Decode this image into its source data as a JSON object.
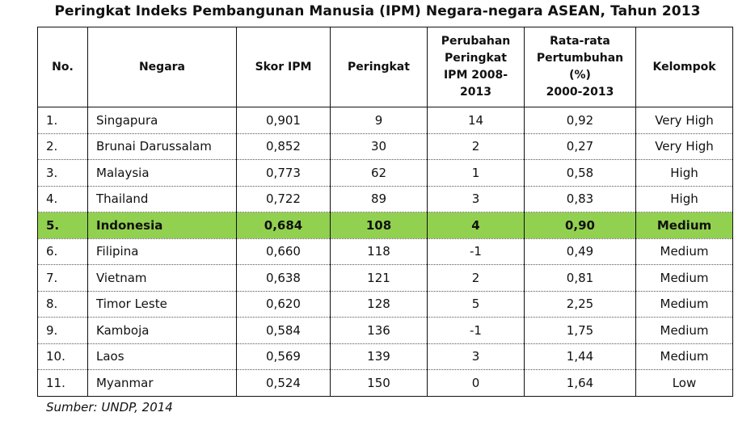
{
  "title": "Peringkat Indeks Pembangunan Manusia (IPM) Negara-negara ASEAN, Tahun 2013",
  "highlight_color": "#92d050",
  "table": {
    "headers": [
      "No.",
      "Negara",
      "Skor IPM",
      "Peringkat",
      "Perubahan\nPeringkat\nIPM 2008-\n2013",
      "Rata-rata\nPertumbuhan\n(%)\n2000-2013",
      "Kelompok"
    ],
    "rows": [
      {
        "no": "1.",
        "negara": "Singapura",
        "skor": "0,901",
        "peringkat": "9",
        "perubahan": "14",
        "pertumbuhan": "0,92",
        "kelompok": "Very High"
      },
      {
        "no": "2.",
        "negara": "Brunai Darussalam",
        "skor": "0,852",
        "peringkat": "30",
        "perubahan": "2",
        "pertumbuhan": "0,27",
        "kelompok": "Very High"
      },
      {
        "no": "3.",
        "negara": "Malaysia",
        "skor": "0,773",
        "peringkat": "62",
        "perubahan": "1",
        "pertumbuhan": "0,58",
        "kelompok": "High"
      },
      {
        "no": "4.",
        "negara": "Thailand",
        "skor": "0,722",
        "peringkat": "89",
        "perubahan": "3",
        "pertumbuhan": "0,83",
        "kelompok": "High"
      },
      {
        "no": "5.",
        "negara": "Indonesia",
        "skor": "0,684",
        "peringkat": "108",
        "perubahan": "4",
        "pertumbuhan": "0,90",
        "kelompok": "Medium",
        "highlighted": true
      },
      {
        "no": "6.",
        "negara": "Filipina",
        "skor": "0,660",
        "peringkat": "118",
        "perubahan": "-1",
        "pertumbuhan": "0,49",
        "kelompok": "Medium"
      },
      {
        "no": "7.",
        "negara": "Vietnam",
        "skor": "0,638",
        "peringkat": "121",
        "perubahan": "2",
        "pertumbuhan": "0,81",
        "kelompok": "Medium"
      },
      {
        "no": "8.",
        "negara": "Timor Leste",
        "skor": "0,620",
        "peringkat": "128",
        "perubahan": "5",
        "pertumbuhan": "2,25",
        "kelompok": "Medium"
      },
      {
        "no": "9.",
        "negara": "Kamboja",
        "skor": "0,584",
        "peringkat": "136",
        "perubahan": "-1",
        "pertumbuhan": "1,75",
        "kelompok": "Medium"
      },
      {
        "no": "10.",
        "negara": "Laos",
        "skor": "0,569",
        "peringkat": "139",
        "perubahan": "3",
        "pertumbuhan": "1,44",
        "kelompok": "Medium"
      },
      {
        "no": "11.",
        "negara": "Myanmar",
        "skor": "0,524",
        "peringkat": "150",
        "perubahan": "0",
        "pertumbuhan": "1,64",
        "kelompok": "Low"
      }
    ]
  },
  "source": "Sumber: UNDP, 2014"
}
